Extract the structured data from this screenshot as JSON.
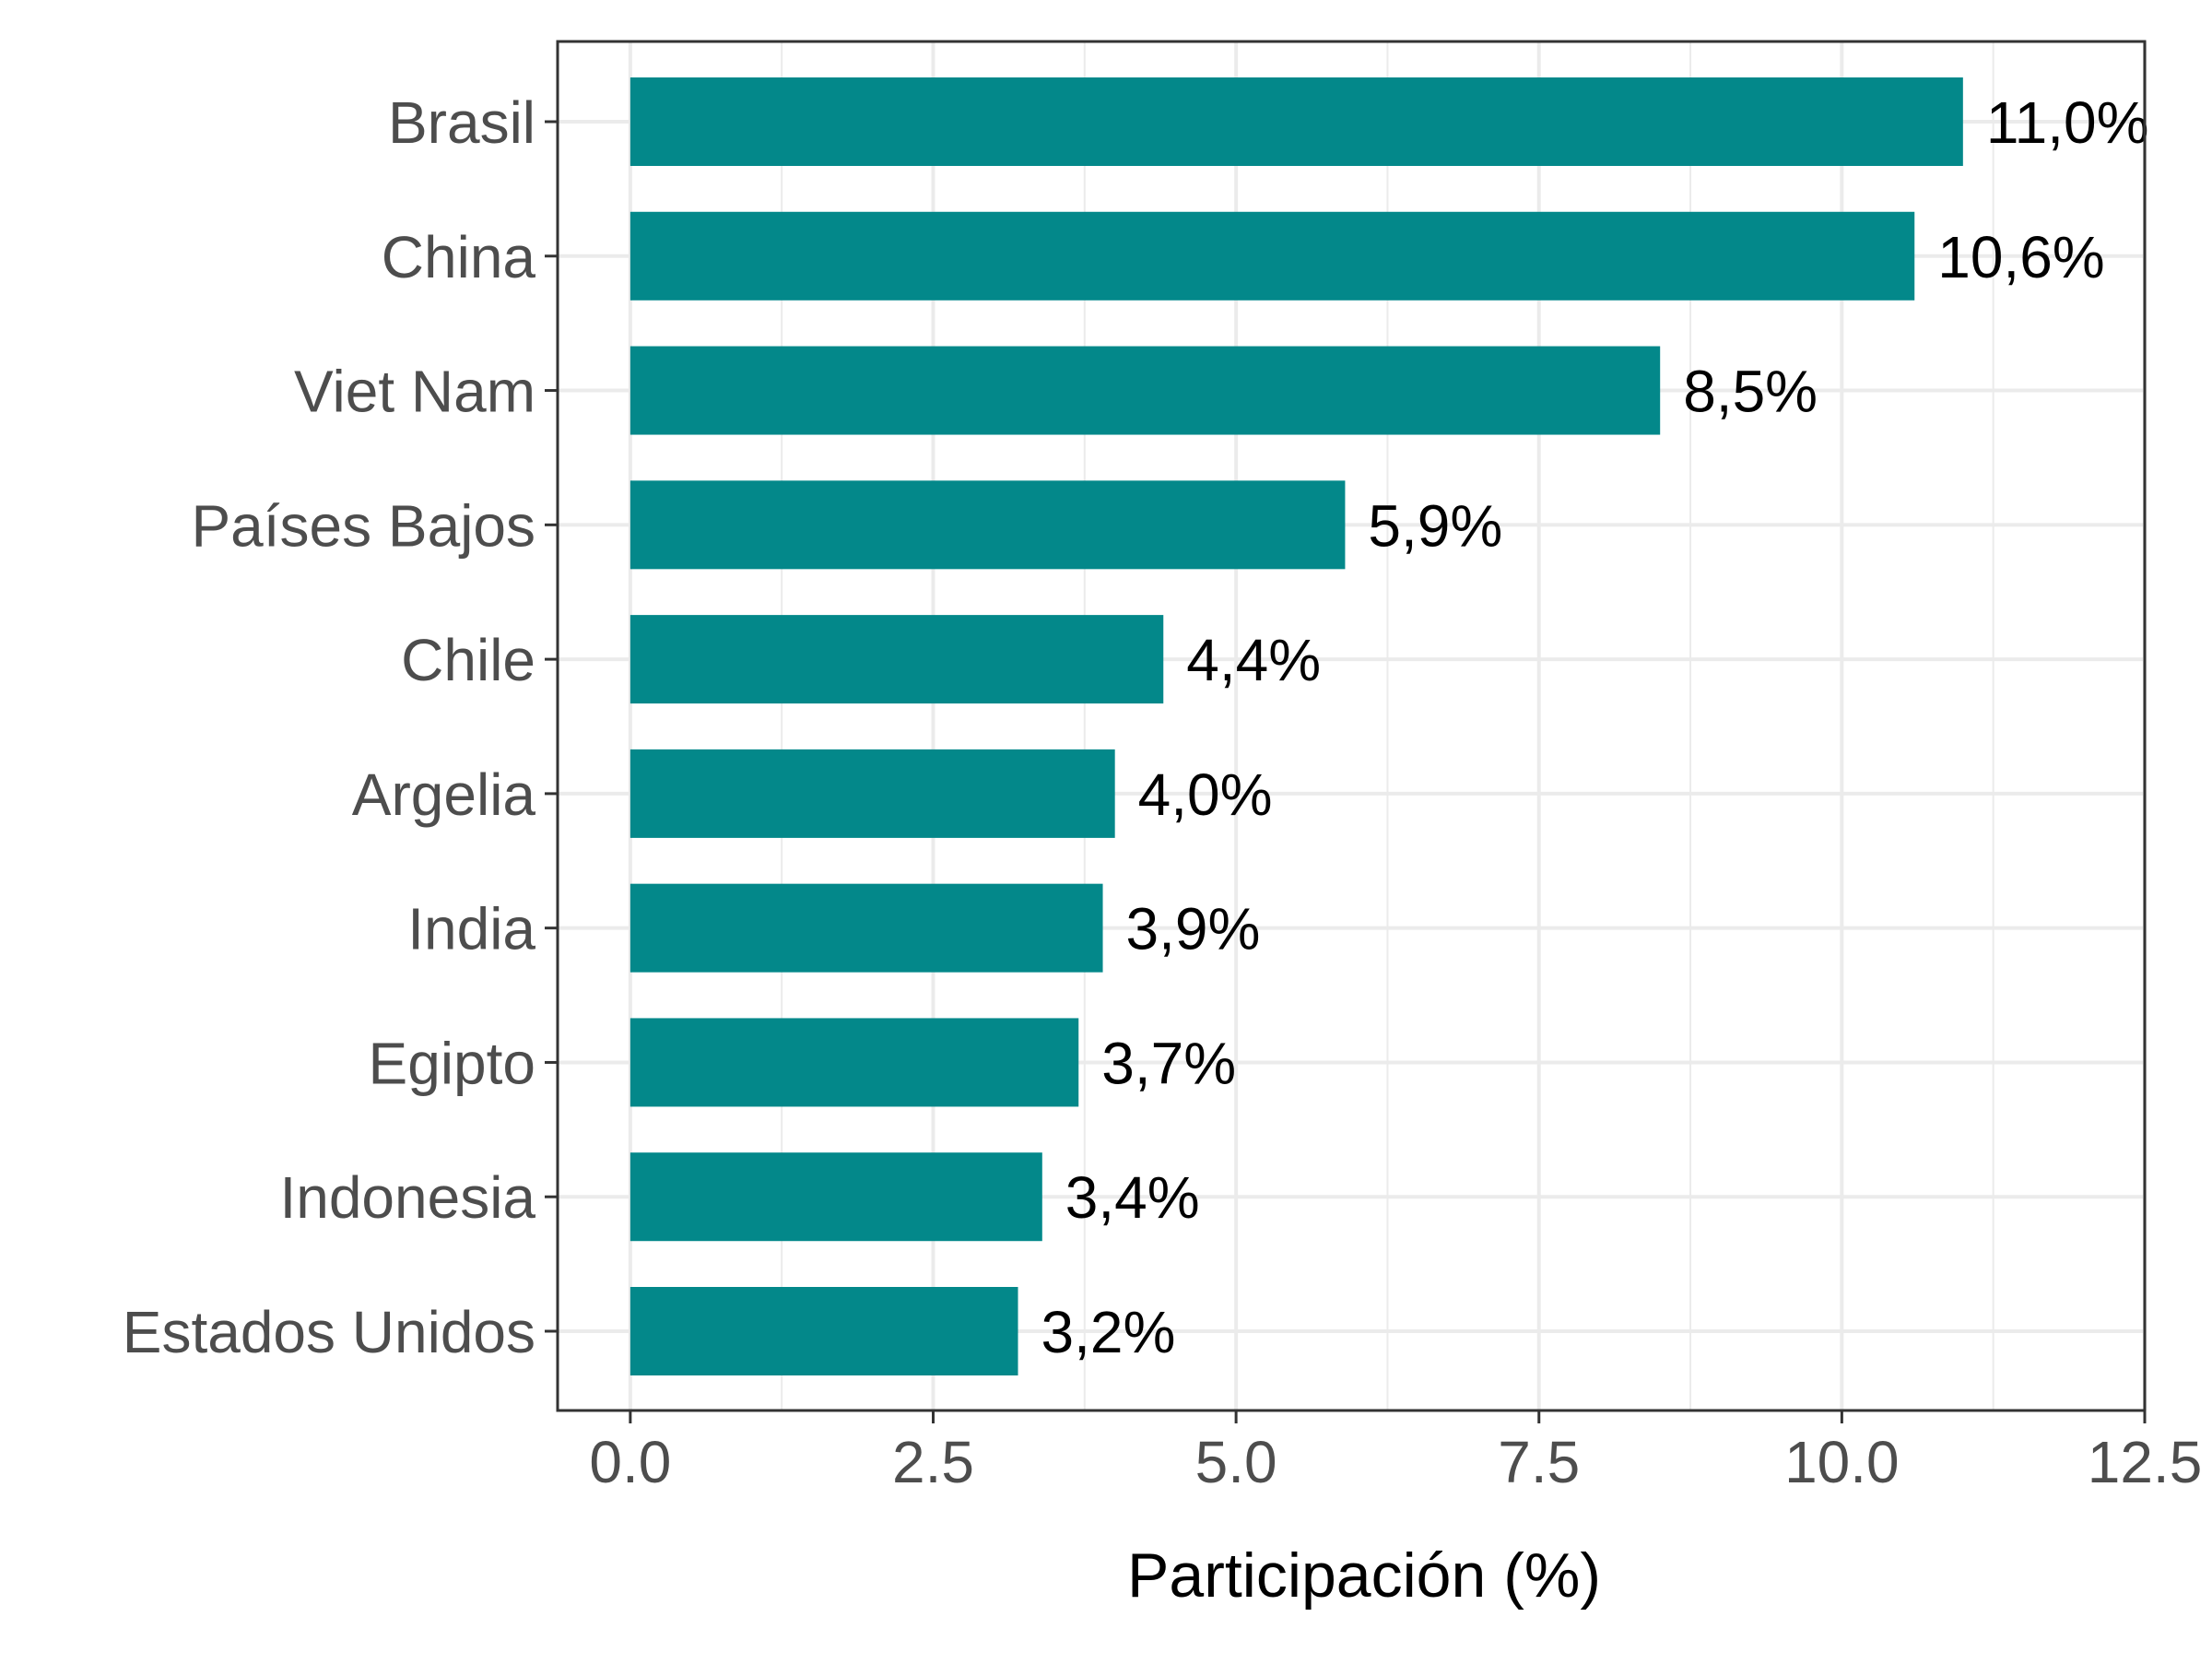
{
  "chart_data": {
    "type": "bar",
    "orientation": "horizontal",
    "categories": [
      "Brasil",
      "China",
      "Viet Nam",
      "Países Bajos",
      "Chile",
      "Argelia",
      "India",
      "Egipto",
      "Indonesia",
      "Estados Unidos"
    ],
    "values": [
      11.0,
      10.6,
      8.5,
      5.9,
      4.4,
      4.0,
      3.9,
      3.7,
      3.4,
      3.2
    ],
    "value_labels": [
      "11,0%",
      "10,6%",
      "8,5%",
      "5,9%",
      "4,4%",
      "4,0%",
      "3,9%",
      "3,7%",
      "3,4%",
      "3,2%"
    ],
    "xlabel": "Participación (%)",
    "ylabel": "",
    "xlim": [
      -0.6,
      12.5
    ],
    "xticks": [
      0,
      2.5,
      5,
      7.5,
      10,
      12.5
    ],
    "xtick_labels": [
      "0.0",
      "2.5",
      "5.0",
      "7.5",
      "10.0",
      "12.5"
    ],
    "grid": true,
    "legend": "none",
    "colors": {
      "bar": "#03888A",
      "grid": "#EBEBEB",
      "panel_border": "#333333",
      "tick_label": "#4D4D4D",
      "value_label": "#000000",
      "axis_title": "#000000"
    }
  }
}
